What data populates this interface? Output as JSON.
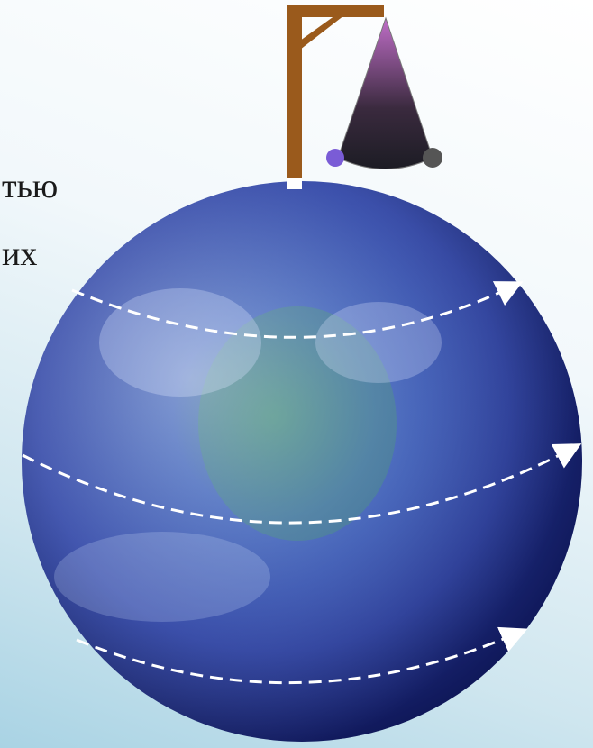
{
  "texts": {
    "line_1": "тью",
    "line_2": "их"
  }
}
